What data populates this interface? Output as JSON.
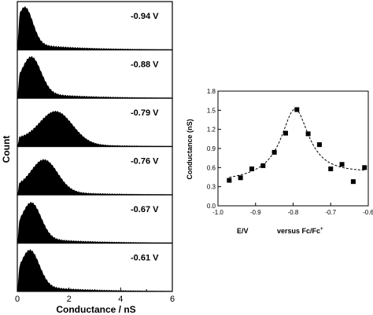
{
  "chart_data": [
    {
      "type": "area",
      "xlabel": "Conductance / nS",
      "ylabel": "Count",
      "xlim": [
        0,
        6
      ],
      "xticks": [
        "0",
        "2",
        "4",
        "6"
      ],
      "panels": [
        {
          "label": "-0.94 V",
          "peak_x": 0.3,
          "peak_height": 0.95
        },
        {
          "label": "-0.88 V",
          "peak_x": 0.55,
          "peak_height": 0.92
        },
        {
          "label": "-0.79 V",
          "peak_x": 1.5,
          "peak_height": 0.78
        },
        {
          "label": "-0.76 V",
          "peak_x": 1.05,
          "peak_height": 0.78
        },
        {
          "label": "-0.67 V",
          "peak_x": 0.55,
          "peak_height": 0.9
        },
        {
          "label": "-0.61 V",
          "peak_x": 0.5,
          "peak_height": 0.92
        }
      ]
    },
    {
      "type": "scatter",
      "xlabel_left": "E/V",
      "xlabel_right": "versus Fc/Fc",
      "xlabel_sup": "+",
      "ylabel": "Conductance (nS)",
      "xlim": [
        -1.0,
        -0.6
      ],
      "ylim": [
        0.0,
        1.8
      ],
      "xticks": [
        "-1.0",
        "-0.9",
        "-0.8",
        "-0.7",
        "-0.6"
      ],
      "yticks": [
        "0.0",
        "0.3",
        "0.6",
        "0.9",
        "1.2",
        "1.5",
        "1.8"
      ],
      "x": [
        -0.97,
        -0.94,
        -0.91,
        -0.88,
        -0.85,
        -0.82,
        -0.79,
        -0.76,
        -0.73,
        -0.7,
        -0.67,
        -0.64,
        -0.61
      ],
      "y": [
        0.4,
        0.44,
        0.58,
        0.63,
        0.84,
        1.14,
        1.51,
        1.13,
        0.96,
        0.58,
        0.65,
        0.38,
        0.6
      ],
      "fit": "dashed Lorentzian fit"
    }
  ]
}
